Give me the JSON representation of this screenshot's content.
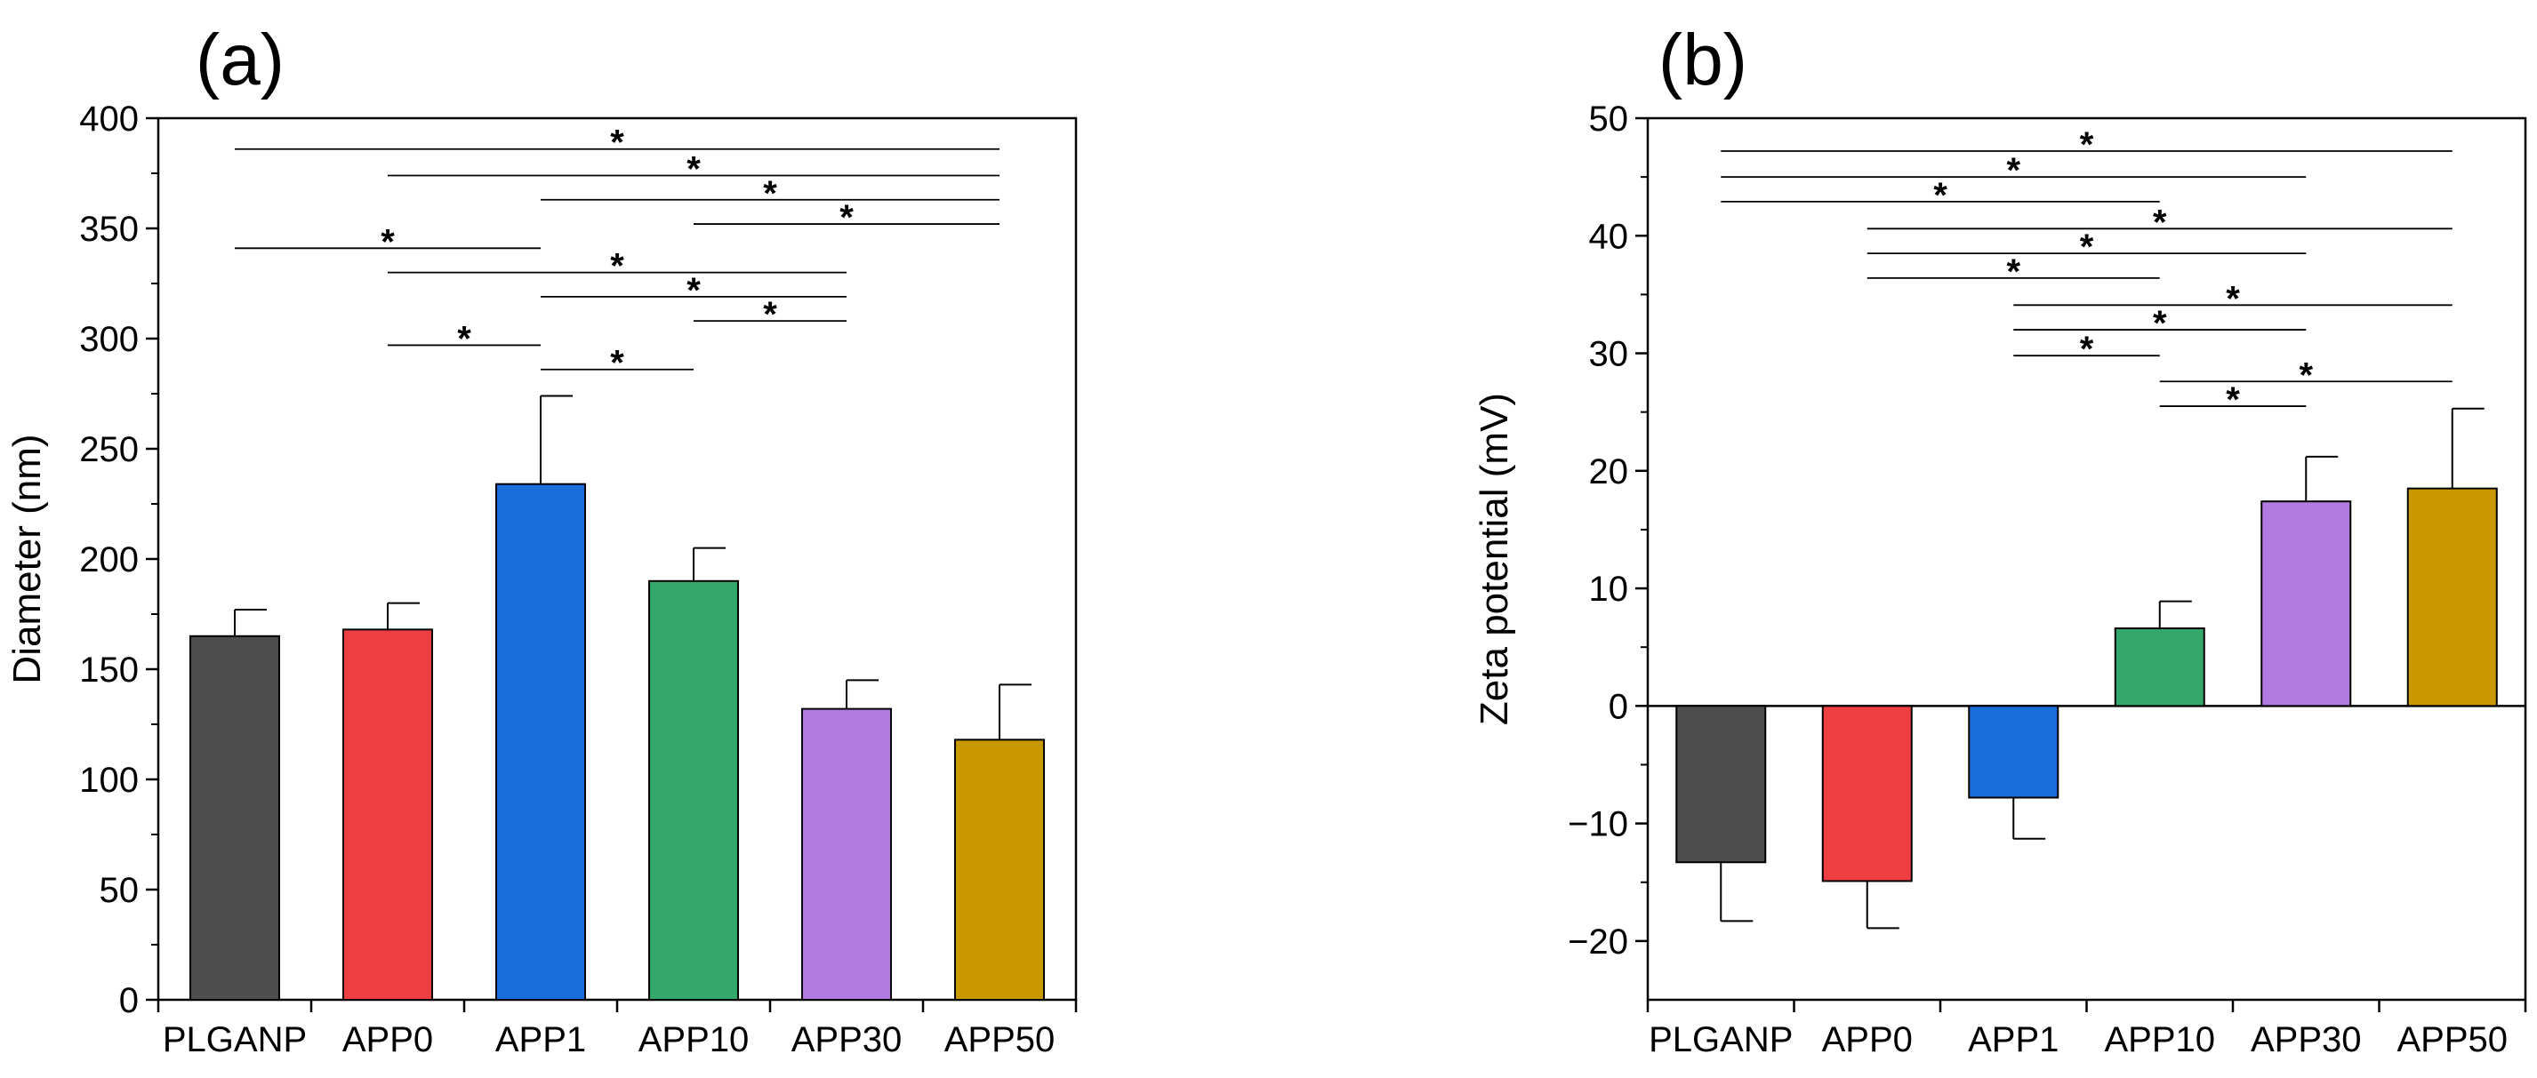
{
  "chart_data": [
    {
      "type": "bar",
      "panel_label": "(a)",
      "title": "",
      "xlabel": "",
      "ylabel": "Diameter (nm)",
      "categories": [
        "PLGANP",
        "APP0",
        "APP1",
        "APP10",
        "APP30",
        "APP50"
      ],
      "values": [
        165,
        168,
        234,
        190,
        132,
        118
      ],
      "errors": [
        12,
        12,
        40,
        15,
        13,
        25
      ],
      "colors": [
        "#4d4d4d",
        "#ef3e42",
        "#1a6edb",
        "#33a86a",
        "#b07ae0",
        "#c99700"
      ],
      "ylim": [
        0,
        400
      ],
      "yticks": [
        0,
        50,
        100,
        150,
        200,
        250,
        300,
        350,
        400
      ],
      "yticks_minor": [
        25,
        75,
        125,
        175,
        225,
        275,
        325,
        375
      ],
      "significance": [
        {
          "from": 0,
          "to": 5,
          "y": 386,
          "label": "*"
        },
        {
          "from": 1,
          "to": 5,
          "y": 374,
          "label": "*"
        },
        {
          "from": 2,
          "to": 5,
          "y": 363,
          "label": "*"
        },
        {
          "from": 3,
          "to": 5,
          "y": 352,
          "label": "*"
        },
        {
          "from": 0,
          "to": 2,
          "y": 341,
          "label": "*"
        },
        {
          "from": 1,
          "to": 4,
          "y": 330,
          "label": "*"
        },
        {
          "from": 2,
          "to": 4,
          "y": 319,
          "label": "*"
        },
        {
          "from": 3,
          "to": 4,
          "y": 308,
          "label": "*"
        },
        {
          "from": 1,
          "to": 2,
          "y": 297,
          "label": "*"
        },
        {
          "from": 2,
          "to": 3,
          "y": 286,
          "label": "*"
        }
      ]
    },
    {
      "type": "bar",
      "panel_label": "(b)",
      "title": "",
      "xlabel": "",
      "ylabel": "Zeta potential (mV)",
      "categories": [
        "PLGANP",
        "APP0",
        "APP1",
        "APP10",
        "APP30",
        "APP50"
      ],
      "values": [
        -13.3,
        -14.9,
        -7.8,
        6.6,
        17.4,
        18.5
      ],
      "errors": [
        5,
        4,
        3.5,
        2.3,
        3.8,
        6.8
      ],
      "colors": [
        "#4d4d4d",
        "#ef3e42",
        "#1a6edb",
        "#33a86a",
        "#b07ae0",
        "#c99700"
      ],
      "ylim": [
        -25,
        50
      ],
      "yticks": [
        -20,
        -10,
        0,
        10,
        20,
        30,
        40,
        50
      ],
      "yticks_minor": [
        -15,
        -5,
        5,
        15,
        25,
        35,
        45
      ],
      "significance": [
        {
          "from": 0,
          "to": 5,
          "y": 47.2,
          "label": "*"
        },
        {
          "from": 0,
          "to": 4,
          "y": 45.0,
          "label": "*"
        },
        {
          "from": 0,
          "to": 3,
          "y": 42.9,
          "label": "*"
        },
        {
          "from": 1,
          "to": 5,
          "y": 40.6,
          "label": "*"
        },
        {
          "from": 1,
          "to": 4,
          "y": 38.5,
          "label": "*"
        },
        {
          "from": 1,
          "to": 3,
          "y": 36.4,
          "label": "*"
        },
        {
          "from": 2,
          "to": 5,
          "y": 34.1,
          "label": "*"
        },
        {
          "from": 2,
          "to": 4,
          "y": 32.0,
          "label": "*"
        },
        {
          "from": 2,
          "to": 3,
          "y": 29.8,
          "label": "*"
        },
        {
          "from": 3,
          "to": 5,
          "y": 27.6,
          "label": "*"
        },
        {
          "from": 3,
          "to": 4,
          "y": 25.5,
          "label": "*"
        }
      ]
    }
  ]
}
